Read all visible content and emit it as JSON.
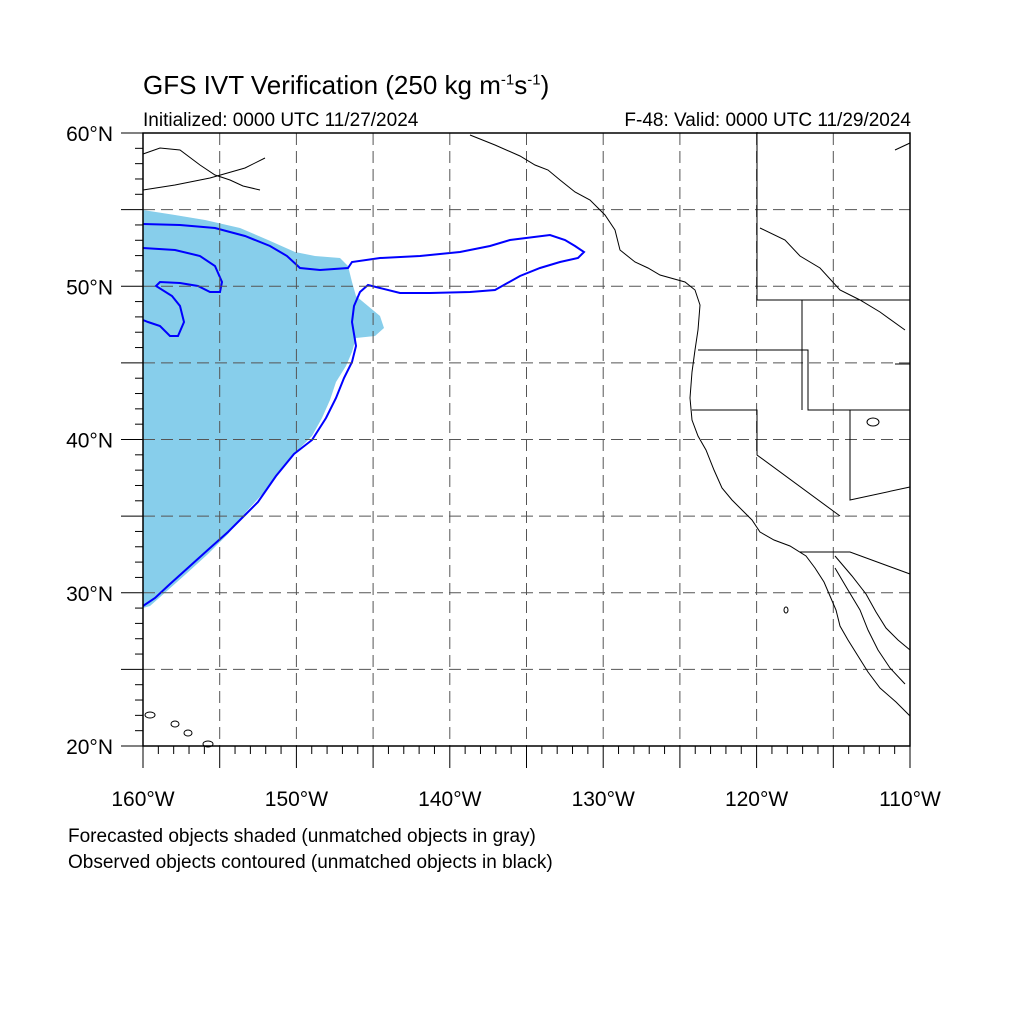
{
  "header": {
    "title_main": "GFS IVT Verification (250 kg m",
    "title_exp1": "-1",
    "title_mid": "s",
    "title_exp2": "-1",
    "title_end": ")",
    "initialized": "Initialized: 0000 UTC 11/27/2024",
    "valid": "F-48: Valid: 0000 UTC 11/29/2024"
  },
  "map": {
    "lon_range": [
      -160,
      -110
    ],
    "lat_range": [
      20,
      60
    ],
    "lat_labels": [
      "60°N",
      "50°N",
      "40°N",
      "30°N",
      "20°N"
    ],
    "lon_labels": [
      "160°W",
      "150°W",
      "140°W",
      "130°W",
      "120°W",
      "110°W"
    ],
    "grid": "dashed every 5°",
    "colors": {
      "forecast_fill": "#87ceeb",
      "observed_contour": "#0000ff",
      "coastline": "#000000"
    }
  },
  "footer": {
    "note1": "Forecasted objects shaded (unmatched objects in gray)",
    "note2": "Observed objects contoured (unmatched objects in black)"
  }
}
